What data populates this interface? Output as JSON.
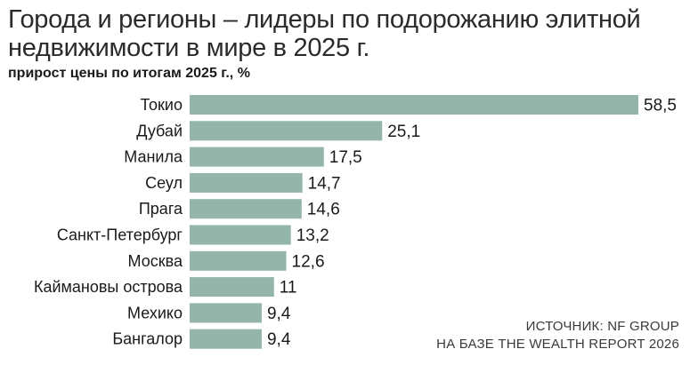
{
  "header": {
    "title": "Города и регионы – лидеры по подорожанию элитной недвижимости в мире в 2025 г.",
    "subtitle": "прирост цены по итогам 2025 г., %"
  },
  "source": {
    "line1": "ИСТОЧНИК: NF GROUP",
    "line2": "НА БАЗЕ THE WEALTH REPORT 2026"
  },
  "colors": {
    "bar": "#93b5aa"
  },
  "chart_data": {
    "type": "bar",
    "orientation": "horizontal",
    "title": "Города и регионы – лидеры по подорожанию элитной недвижимости в мире в 2025 г.",
    "subtitle": "прирост цены по итогам 2025 г., %",
    "categories": [
      "Токио",
      "Дубай",
      "Манила",
      "Сеул",
      "Прага",
      "Санкт-Петербург",
      "Москва",
      "Каймановы острова",
      "Мехико",
      "Бангалор"
    ],
    "values": [
      58.5,
      25.1,
      17.5,
      14.7,
      14.6,
      13.2,
      12.6,
      11,
      9.4,
      9.4
    ],
    "value_labels": [
      "58,5",
      "25,1",
      "17,5",
      "14,7",
      "14,6",
      "13,2",
      "12,6",
      "11",
      "9,4",
      "9,4"
    ],
    "xlim": [
      0,
      58.5
    ],
    "grid": false,
    "legend": "none"
  }
}
